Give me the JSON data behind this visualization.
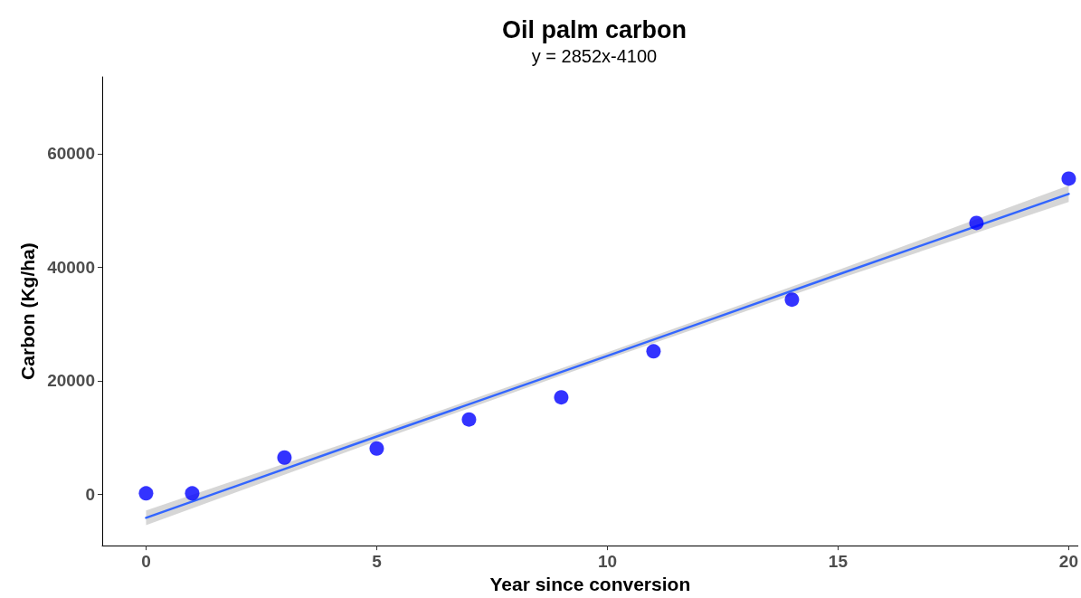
{
  "chart_data": {
    "type": "scatter",
    "title": "Oil palm carbon",
    "subtitle": "y = 2852x-4100",
    "xlabel": "Year since conversion",
    "ylabel": "Carbon (Kg/ha)",
    "x": [
      0,
      1,
      3,
      5,
      7,
      9,
      11,
      14,
      18,
      20
    ],
    "series": [
      {
        "color": "#0000ff",
        "values": [
          200,
          200,
          6500,
          8100,
          13200,
          17100,
          25200,
          34300,
          47800,
          55600
        ]
      },
      {
        "type": "line",
        "color": "#3366ff",
        "marker": "none",
        "line_style": "solid",
        "x": [
          0,
          5,
          10,
          15,
          20
        ],
        "values": [
          -4100,
          10200,
          24400,
          38700,
          52900
        ],
        "lower": [
          -5400,
          9400,
          23800,
          37900,
          51500
        ],
        "upper": [
          -2800,
          10900,
          25000,
          39500,
          54400
        ]
      }
    ],
    "xlim": [
      -0.95,
      20.2
    ],
    "xticks": [
      0,
      5,
      10,
      15,
      20
    ],
    "ylim": [
      -9000,
      73500
    ],
    "yticks": [
      0,
      20000,
      40000,
      60000
    ],
    "grid": false,
    "marker": "circle"
  }
}
